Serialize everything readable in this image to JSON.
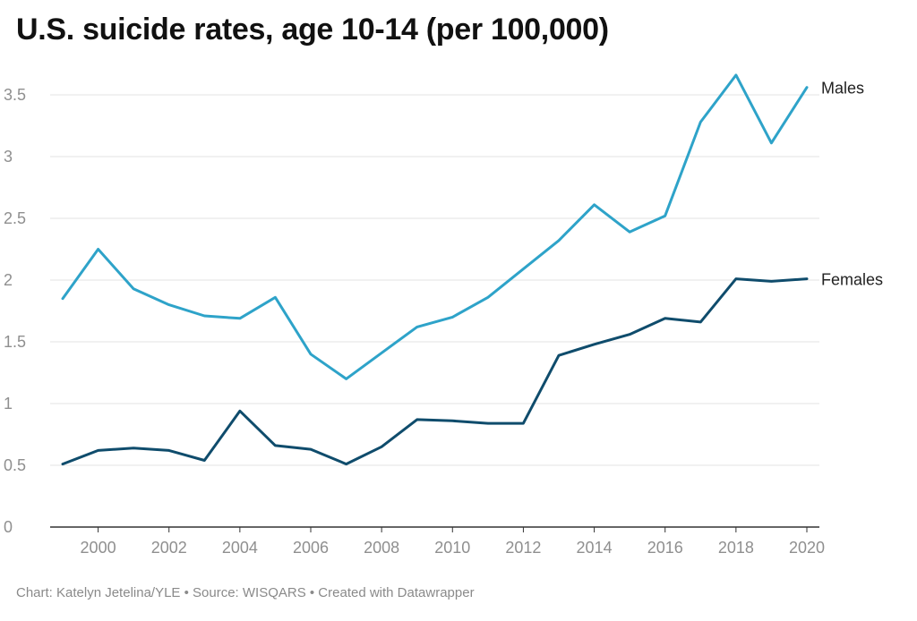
{
  "title": "U.S. suicide rates, age 10-14 (per 100,000)",
  "footer": "Chart: Katelyn Jetelina/YLE • Source: WISQARS • Created with Datawrapper",
  "chart_data": {
    "type": "line",
    "title": "U.S. suicide rates, age 10-14 (per 100,000)",
    "xlabel": "",
    "ylabel": "",
    "x": [
      1999,
      2000,
      2001,
      2002,
      2003,
      2004,
      2005,
      2006,
      2007,
      2008,
      2009,
      2010,
      2011,
      2012,
      2013,
      2014,
      2015,
      2016,
      2017,
      2018,
      2019,
      2020
    ],
    "xlim": [
      1999,
      2020
    ],
    "ylim": [
      0,
      3.5
    ],
    "x_ticks": [
      "2000",
      "2002",
      "2004",
      "2006",
      "2008",
      "2010",
      "2012",
      "2014",
      "2016",
      "2018",
      "2020"
    ],
    "y_ticks": [
      "0",
      "0.5",
      "1",
      "1.5",
      "2",
      "2.5",
      "3",
      "3.5"
    ],
    "grid": true,
    "legend": "direct labels at line ends",
    "series": [
      {
        "name": "Males",
        "color": "#2ea3c9",
        "values": [
          1.85,
          2.25,
          1.93,
          1.8,
          1.71,
          1.69,
          1.86,
          1.4,
          1.2,
          1.41,
          1.62,
          1.7,
          1.86,
          2.09,
          2.32,
          2.61,
          2.39,
          2.52,
          3.28,
          3.66,
          3.11,
          3.56
        ]
      },
      {
        "name": "Females",
        "color": "#0f4c6c",
        "values": [
          0.51,
          0.62,
          0.64,
          0.62,
          0.54,
          0.94,
          0.66,
          0.63,
          0.51,
          0.65,
          0.87,
          0.86,
          0.84,
          0.84,
          1.39,
          1.48,
          1.56,
          1.69,
          1.66,
          2.01,
          1.99,
          2.01
        ]
      }
    ]
  }
}
